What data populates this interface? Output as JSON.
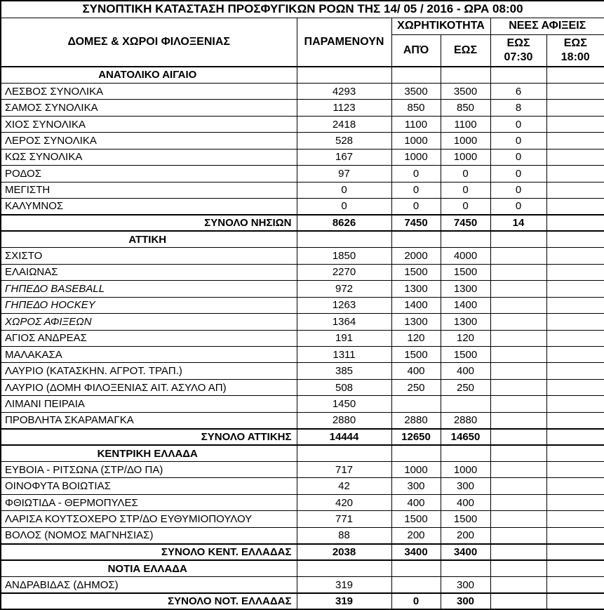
{
  "title": "ΣΥΝΟΠΤΙΚΗ ΚΑΤΑΣΤΑΣΗ ΠΡΟΣΦΥΓΙΚΩΝ ΡΟΩΝ ΤΗΣ 14/ 05 / 2016 - ΩΡΑ 08:00",
  "header": {
    "facilities": "ΔΟΜΕΣ & ΧΩΡΟΙ ΦΙΛΟΞΕΝΙΑΣ",
    "remaining": "ΠΑΡΑΜΕΝΟΥΝ",
    "capacity_group": "ΧΩΡΗΤΙΚΟΤΗΤΑ",
    "new_arrivals_group": "ΝΕΕΣ ΑΦΙΞΕΙΣ",
    "capacity_from": "ΑΠΌ",
    "capacity_to": "ΕΩΣ",
    "arrivals_until_0730": {
      "line1": "ΕΩΣ",
      "line2": "07:30"
    },
    "arrivals_until_1800": {
      "line1": "ΕΩΣ",
      "line2": "18:00"
    }
  },
  "rows": [
    {
      "type": "section",
      "label": "ΑΝΑΤΟΛΙΚΟ ΑΙΓΑΙΟ",
      "remaining": "",
      "cap_from": "",
      "cap_to": "",
      "arr_0730": "",
      "arr_1800": ""
    },
    {
      "type": "data",
      "label": "ΛΕΣΒΟΣ ΣΥΝΟΛΙΚΑ",
      "remaining": "4293",
      "cap_from": "3500",
      "cap_to": "3500",
      "arr_0730": "6",
      "arr_1800": ""
    },
    {
      "type": "data",
      "label": "ΣΑΜΟΣ ΣΥΝΟΛΙΚΑ",
      "remaining": "1123",
      "cap_from": "850",
      "cap_to": "850",
      "arr_0730": "8",
      "arr_1800": ""
    },
    {
      "type": "data",
      "label": "ΧΙΟΣ ΣΥΝΟΛΙΚΑ",
      "remaining": "2418",
      "cap_from": "1100",
      "cap_to": "1100",
      "arr_0730": "0",
      "arr_1800": ""
    },
    {
      "type": "data",
      "label": "ΛΕΡΟΣ ΣΥΝΟΛΙΚΑ",
      "remaining": "528",
      "cap_from": "1000",
      "cap_to": "1000",
      "arr_0730": "0",
      "arr_1800": ""
    },
    {
      "type": "data",
      "label": "ΚΩΣ ΣΥΝΟΛΙΚΑ",
      "remaining": "167",
      "cap_from": "1000",
      "cap_to": "1000",
      "arr_0730": "0",
      "arr_1800": ""
    },
    {
      "type": "data",
      "label": "ΡΟΔΟΣ",
      "remaining": "97",
      "cap_from": "0",
      "cap_to": "0",
      "arr_0730": "0",
      "arr_1800": ""
    },
    {
      "type": "data",
      "label": "ΜΕΓΙΣΤΗ",
      "remaining": "0",
      "cap_from": "0",
      "cap_to": "0",
      "arr_0730": "0",
      "arr_1800": ""
    },
    {
      "type": "data",
      "label": "ΚΑΛΥΜΝΟΣ",
      "remaining": "0",
      "cap_from": "0",
      "cap_to": "0",
      "arr_0730": "0",
      "arr_1800": ""
    },
    {
      "type": "total",
      "label": "ΣΥΝΟΛΟ ΝΗΣΙΩΝ",
      "remaining": "8626",
      "cap_from": "7450",
      "cap_to": "7450",
      "arr_0730": "14",
      "arr_1800": ""
    },
    {
      "type": "section",
      "label": "ΑΤΤΙΚΗ",
      "remaining": "",
      "cap_from": "",
      "cap_to": "",
      "arr_0730": "",
      "arr_1800": ""
    },
    {
      "type": "data",
      "label": "ΣΧΙΣΤΟ",
      "remaining": "1850",
      "cap_from": "2000",
      "cap_to": "4000",
      "arr_0730": "",
      "arr_1800": ""
    },
    {
      "type": "data",
      "label": "ΕΛΑΙΩΝΑΣ",
      "remaining": "2270",
      "cap_from": "1500",
      "cap_to": "1500",
      "arr_0730": "",
      "arr_1800": ""
    },
    {
      "type": "data",
      "italic": true,
      "label": "ΓΗΠΕΔΟ BASEBALL",
      "remaining": "972",
      "cap_from": "1300",
      "cap_to": "1300",
      "arr_0730": "",
      "arr_1800": ""
    },
    {
      "type": "data",
      "italic": true,
      "label": "ΓΗΠΕΔΟ HOCKEY",
      "remaining": "1263",
      "cap_from": "1400",
      "cap_to": "1400",
      "arr_0730": "",
      "arr_1800": ""
    },
    {
      "type": "data",
      "italic": true,
      "label": "ΧΩΡΟΣ ΑΦΙΞΕΩΝ",
      "remaining": "1364",
      "cap_from": "1300",
      "cap_to": "1300",
      "arr_0730": "",
      "arr_1800": ""
    },
    {
      "type": "data",
      "label": "ΑΓΙΟΣ ΑΝΔΡΕΑΣ",
      "remaining": "191",
      "cap_from": "120",
      "cap_to": "120",
      "arr_0730": "",
      "arr_1800": ""
    },
    {
      "type": "data",
      "label": "ΜΑΛΑΚΑΣΑ",
      "remaining": "1311",
      "cap_from": "1500",
      "cap_to": "1500",
      "arr_0730": "",
      "arr_1800": ""
    },
    {
      "type": "data",
      "label": "ΛΑΥΡΙΟ (ΚΑΤΑΣΚΗΝ. ΑΓΡΟΤ. ΤΡΑΠ.)",
      "remaining": "385",
      "cap_from": "400",
      "cap_to": "400",
      "arr_0730": "",
      "arr_1800": ""
    },
    {
      "type": "data",
      "label": "ΛΑΥΡΙΟ (ΔΟΜΗ ΦΙΛΟΞΕΝΙΑΣ ΑΙΤ. ΑΣΥΛΟ ΑΠ)",
      "remaining": "508",
      "cap_from": "250",
      "cap_to": "250",
      "arr_0730": "",
      "arr_1800": ""
    },
    {
      "type": "data",
      "label": "ΛΙΜΑΝΙ ΠΕΙΡΑΙΑ",
      "remaining": "1450",
      "cap_from": "",
      "cap_to": "",
      "arr_0730": "",
      "arr_1800": ""
    },
    {
      "type": "data",
      "label": "ΠΡΟΒΛΗΤΑ ΣΚΑΡΑΜΑΓΚΑ",
      "remaining": "2880",
      "cap_from": "2880",
      "cap_to": "2880",
      "arr_0730": "",
      "arr_1800": ""
    },
    {
      "type": "total",
      "label": "ΣΥΝΟΛΟ ΑΤΤΙΚΗΣ",
      "remaining": "14444",
      "cap_from": "12650",
      "cap_to": "14650",
      "arr_0730": "",
      "arr_1800": ""
    },
    {
      "type": "section",
      "label": "ΚΕΝΤΡΙΚΗ ΕΛΛΑΔΑ",
      "remaining": "",
      "cap_from": "",
      "cap_to": "",
      "arr_0730": "",
      "arr_1800": ""
    },
    {
      "type": "data",
      "label": "ΕΥΒΟΙΑ - ΡΙΤΣΩΝΑ (ΣΤΡ/ΔΟ ΠΑ)",
      "remaining": "717",
      "cap_from": "1000",
      "cap_to": "1000",
      "arr_0730": "",
      "arr_1800": ""
    },
    {
      "type": "data",
      "label": "ΟΙΝΟΦΥΤΑ ΒΟΙΩΤΙΑΣ",
      "remaining": "42",
      "cap_from": "300",
      "cap_to": "300",
      "arr_0730": "",
      "arr_1800": ""
    },
    {
      "type": "data",
      "label": "ΦΘΙΩΤΙΔΑ - ΘΕΡΜΟΠΥΛΕΣ",
      "remaining": "420",
      "cap_from": "400",
      "cap_to": "400",
      "arr_0730": "",
      "arr_1800": ""
    },
    {
      "type": "data",
      "label": "ΛΑΡΙΣΑ ΚΟΥΤΣΟΧΕΡΟ ΣΤΡ/ΔΟ ΕΥΘΥΜΙΟΠΟΥΛΟΥ",
      "remaining": "771",
      "cap_from": "1500",
      "cap_to": "1500",
      "arr_0730": "",
      "arr_1800": ""
    },
    {
      "type": "data",
      "label": "ΒΟΛΟΣ (ΝΟΜΟΣ ΜΑΓΝΗΣΙΑΣ)",
      "remaining": "88",
      "cap_from": "200",
      "cap_to": "200",
      "arr_0730": "",
      "arr_1800": ""
    },
    {
      "type": "total",
      "label": "ΣΥΝΟΛΟ ΚΕΝΤ. ΕΛΛΑΔΑΣ",
      "remaining": "2038",
      "cap_from": "3400",
      "cap_to": "3400",
      "arr_0730": "",
      "arr_1800": ""
    },
    {
      "type": "section",
      "label": "ΝΟΤΙΑ ΕΛΛΑΔΑ",
      "remaining": "",
      "cap_from": "",
      "cap_to": "",
      "arr_0730": "",
      "arr_1800": ""
    },
    {
      "type": "data",
      "label": "ΑΝΔΡΑΒΙΔΑΣ (ΔΗΜΟΣ)",
      "remaining": "319",
      "cap_from": "",
      "cap_to": "300",
      "arr_0730": "",
      "arr_1800": ""
    },
    {
      "type": "total",
      "label": "ΣΥΝΟΛΟ ΝΟΤ. ΕΛΛΑΔΑΣ",
      "remaining": "319",
      "cap_from": "0",
      "cap_to": "300",
      "arr_0730": "",
      "arr_1800": ""
    }
  ]
}
